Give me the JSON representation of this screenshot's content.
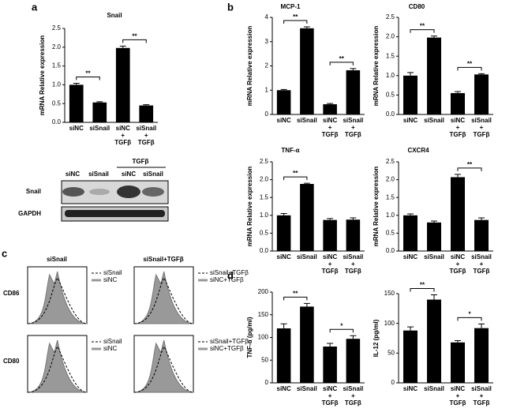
{
  "panel_labels": [
    "a",
    "b",
    "c",
    "d"
  ],
  "chart_data": [
    {
      "type": "bar",
      "title": "Snail",
      "ylabel": "mRNA Relative expression",
      "color": "#000000",
      "categories": [
        "siNC",
        "siSnail",
        "siNC\n+\nTGFβ",
        "siSnail\n+\nTGFβ"
      ],
      "values": [
        1.0,
        0.53,
        1.98,
        0.45
      ],
      "errors": [
        0.04,
        0.02,
        0.05,
        0.02
      ],
      "ylim": [
        0,
        2.5
      ],
      "yticks": [
        {
          "value": 0,
          "label": "0.0"
        },
        0.5,
        {
          "value": 1,
          "label": "1.0"
        },
        1.5,
        {
          "value": 2,
          "label": "2.0"
        },
        2.5
      ],
      "comparisons": [
        {
          "groups": [
            0,
            1
          ],
          "label": "**"
        },
        {
          "groups": [
            2,
            3
          ],
          "label": "**"
        }
      ]
    },
    {
      "type": "bar",
      "title": "MCP-1",
      "ylabel": "mRNA Relative expression",
      "color": "#000000",
      "categories": [
        "siNC",
        "siSnail",
        "siNC\n+\nTGFβ",
        "siSnail\n+\nTGFβ"
      ],
      "values": [
        1.0,
        3.55,
        0.42,
        1.82
      ],
      "errors": [
        0.03,
        0.06,
        0.03,
        0.07
      ],
      "ylim": [
        0,
        4
      ],
      "yticks": [
        0,
        1,
        2,
        3,
        4
      ],
      "comparisons": [
        {
          "groups": [
            0,
            1
          ],
          "label": "**"
        },
        {
          "groups": [
            2,
            3
          ],
          "label": "**"
        }
      ]
    },
    {
      "type": "bar",
      "title": "CD80",
      "ylabel": "mRNA Relative expression",
      "color": "#000000",
      "categories": [
        "siNC",
        "siSnail",
        "siNC\n+\nTGFβ",
        "siSnail\n+\nTGFβ"
      ],
      "values": [
        1.0,
        1.98,
        0.55,
        1.03
      ],
      "errors": [
        0.08,
        0.04,
        0.04,
        0.02
      ],
      "ylim": [
        0,
        2.5
      ],
      "yticks": [
        {
          "value": 0,
          "label": "0.0"
        },
        0.5,
        {
          "value": 1,
          "label": "1.0"
        },
        1.5,
        {
          "value": 2,
          "label": "2.0"
        },
        2.5
      ],
      "comparisons": [
        {
          "groups": [
            0,
            1
          ],
          "label": "**"
        },
        {
          "groups": [
            2,
            3
          ],
          "label": "**"
        }
      ]
    },
    {
      "type": "bar",
      "title": "TNF-α",
      "ylabel": "mRNA Relative expression",
      "color": "#000000",
      "categories": [
        "siNC",
        "siSnail",
        "siNC\n+\nTGFβ",
        "siSnail\n+\nTGFβ"
      ],
      "values": [
        1.0,
        1.88,
        0.87,
        0.88
      ],
      "errors": [
        0.05,
        0.02,
        0.04,
        0.05
      ],
      "ylim": [
        0,
        2.5
      ],
      "yticks": [
        {
          "value": 0,
          "label": "0.0"
        },
        0.5,
        {
          "value": 1,
          "label": "1.0"
        },
        1.5,
        {
          "value": 2,
          "label": "2.0"
        },
        2.5
      ],
      "comparisons": [
        {
          "groups": [
            0,
            1
          ],
          "label": "**"
        }
      ]
    },
    {
      "type": "bar",
      "title": "CXCR4",
      "ylabel": "mRNA Relative expression",
      "color": "#000000",
      "categories": [
        "siNC",
        "siSnail",
        "siNC\n+\nTGFβ",
        "siSnail\n+\nTGFβ"
      ],
      "values": [
        1.0,
        0.8,
        2.07,
        0.87
      ],
      "errors": [
        0.04,
        0.04,
        0.08,
        0.06
      ],
      "ylim": [
        0,
        2.5
      ],
      "yticks": [
        {
          "value": 0,
          "label": "0.0"
        },
        0.5,
        {
          "value": 1,
          "label": "1.0"
        },
        1.5,
        {
          "value": 2,
          "label": "2.0"
        },
        2.5
      ],
      "comparisons": [
        {
          "groups": [
            2,
            3
          ],
          "label": "**"
        }
      ]
    },
    {
      "type": "bar",
      "ylabel": "TNF-α (pg/ml)",
      "color": "#000000",
      "categories": [
        "siNC",
        "siSnail",
        "siNC\n+\nTGFβ",
        "siSnail\n+\nTGFβ"
      ],
      "values": [
        120,
        168,
        80,
        97
      ],
      "errors": [
        10,
        7,
        7,
        7
      ],
      "ylim": [
        0,
        200
      ],
      "yticks": [
        0,
        50,
        100,
        150,
        200
      ],
      "comparisons": [
        {
          "groups": [
            0,
            1
          ],
          "label": "**"
        },
        {
          "groups": [
            2,
            3
          ],
          "label": "*"
        }
      ]
    },
    {
      "type": "bar",
      "ylabel": "IL-12 (pg/ml)",
      "color": "#000000",
      "categories": [
        "siNC",
        "siSnail",
        "siNC\n+\nTGFβ",
        "siSnail\n+\nTGFβ"
      ],
      "values": [
        88,
        140,
        68,
        92
      ],
      "errors": [
        6,
        8,
        3,
        7
      ],
      "ylim": [
        0,
        150
      ],
      "yticks": [
        0,
        50,
        100,
        150
      ],
      "comparisons": [
        {
          "groups": [
            0,
            1
          ],
          "label": "**"
        },
        {
          "groups": [
            2,
            3
          ],
          "label": "*"
        }
      ]
    }
  ],
  "blot": {
    "lanes": [
      "siNC",
      "siSnail",
      "siNC",
      "siSnail"
    ],
    "treatment": "TGFβ",
    "rows": [
      "Snail",
      "GAPDH"
    ]
  },
  "flow": {
    "columns": [
      "siSnail",
      "siSnail+TGFβ"
    ],
    "rows": [
      "CD86",
      "CD80"
    ],
    "legends": [
      [
        "siSnail",
        "siNC"
      ],
      [
        "siSnail+TGFβ",
        "siNC+TGFβ"
      ]
    ]
  }
}
